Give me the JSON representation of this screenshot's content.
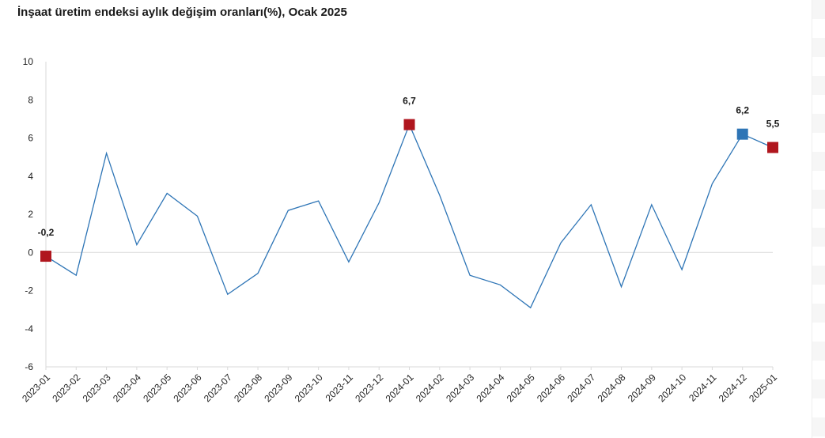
{
  "chart_data": {
    "type": "line",
    "title": "İnşaat üretim endeksi aylık değişim oranları(%), Ocak 2025",
    "xlabel": "",
    "ylabel": "",
    "ylim": [
      -6,
      10
    ],
    "yticks": [
      10,
      8,
      6,
      4,
      2,
      0,
      -2,
      -4,
      -6
    ],
    "grid": false,
    "legend": "none",
    "categories": [
      "2023-01",
      "2023-02",
      "2023-03",
      "2023-04",
      "2023-05",
      "2023-06",
      "2023-07",
      "2023-08",
      "2023-09",
      "2023-10",
      "2023-11",
      "2023-12",
      "2024-01",
      "2024-02",
      "2024-03",
      "2024-04",
      "2024-05",
      "2024-06",
      "2024-07",
      "2024-08",
      "2024-09",
      "2024-10",
      "2024-11",
      "2024-12",
      "2025-01"
    ],
    "series": [
      {
        "values": [
          -0.2,
          -1.2,
          5.2,
          0.4,
          3.1,
          1.9,
          -2.2,
          -1.1,
          2.2,
          2.7,
          -0.5,
          2.6,
          6.7,
          3.0,
          -1.2,
          -1.7,
          -2.9,
          0.5,
          2.5,
          -1.8,
          2.5,
          -0.9,
          3.6,
          6.2,
          5.5
        ],
        "color": "#2e75b6"
      }
    ],
    "highlighted_points": [
      {
        "category": "2023-01",
        "label": "-0,2",
        "color": "#b0161e"
      },
      {
        "category": "2024-01",
        "label": "6,7",
        "color": "#b0161e"
      },
      {
        "category": "2024-12",
        "label": "6,2",
        "color": "#2e75b6"
      },
      {
        "category": "2025-01",
        "label": "5,5",
        "color": "#b0161e"
      }
    ],
    "colors": {
      "line": "#2e75b6",
      "marker_red": "#b0161e",
      "marker_blue": "#2e75b6",
      "axis": "#d9d9d9"
    }
  }
}
